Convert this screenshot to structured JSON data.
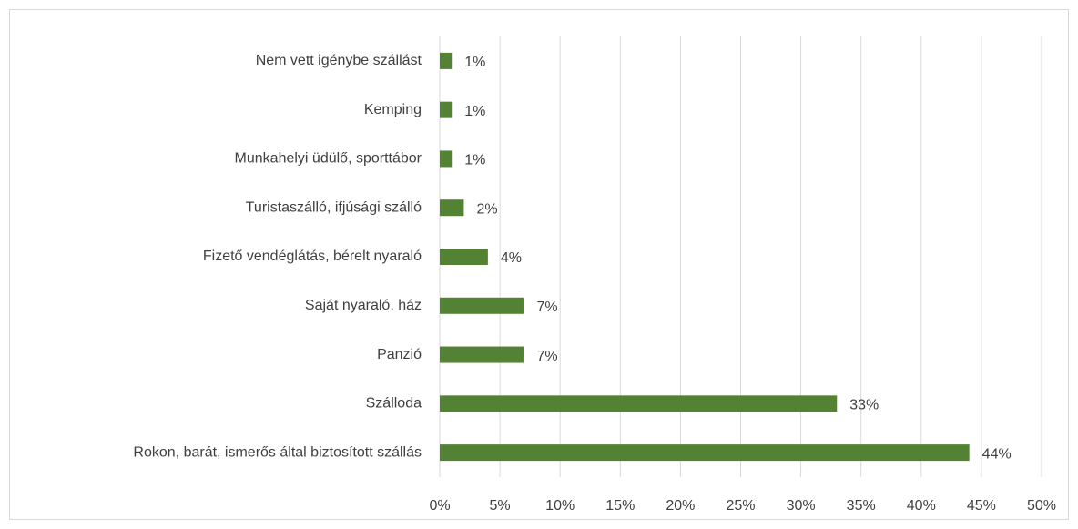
{
  "chart_data": {
    "type": "bar",
    "orientation": "horizontal",
    "categories": [
      "Nem vett igénybe szállást",
      "Kemping",
      "Munkahelyi üdülő, sporttábor",
      "Turistaszálló, ifjúsági szálló",
      "Fizető vendéglátás, bérelt nyaraló",
      "Saját nyaraló, ház",
      "Panzió",
      "Szálloda",
      "Rokon, barát, ismerős által biztosított szállás"
    ],
    "values": [
      1,
      1,
      1,
      2,
      4,
      7,
      7,
      33,
      44
    ],
    "value_labels": [
      "1%",
      "1%",
      "1%",
      "2%",
      "4%",
      "7%",
      "7%",
      "33%",
      "44%"
    ],
    "color": "#548235",
    "xlim": [
      0,
      50
    ],
    "xticks": [
      {
        "value": 0,
        "label": "0%"
      },
      {
        "value": 5,
        "label": "5%"
      },
      {
        "value": 10,
        "label": "10%"
      },
      {
        "value": 15,
        "label": "15%"
      },
      {
        "value": 20,
        "label": "20%"
      },
      {
        "value": 25,
        "label": "25%"
      },
      {
        "value": 30,
        "label": "30%"
      },
      {
        "value": 35,
        "label": "35%"
      },
      {
        "value": 40,
        "label": "40%"
      },
      {
        "value": 45,
        "label": "45%"
      },
      {
        "value": 50,
        "label": "50%"
      }
    ],
    "grid": true
  }
}
